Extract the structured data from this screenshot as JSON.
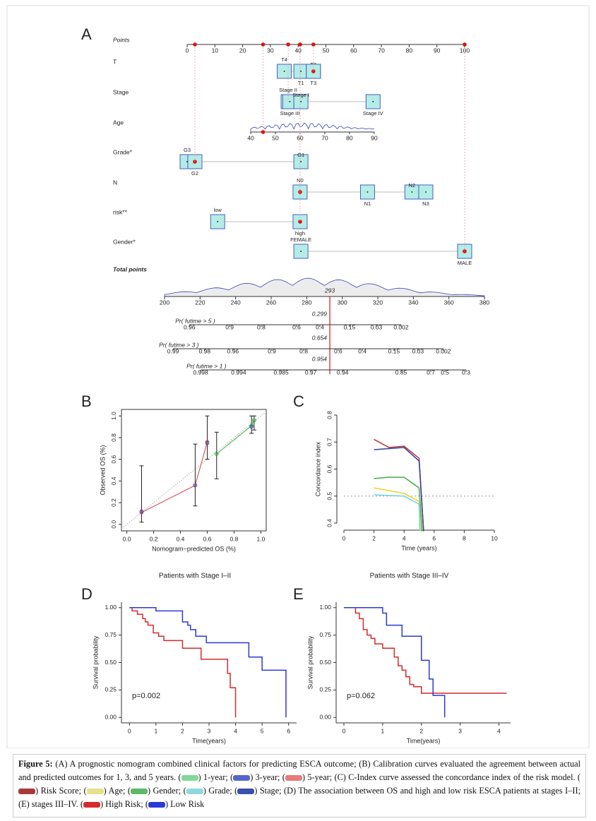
{
  "panel_labels": [
    "A",
    "B",
    "C",
    "D",
    "E"
  ],
  "nomogram": {
    "points_label": "Points",
    "points_lim": [
      0,
      100
    ],
    "points_ticks": [
      0,
      10,
      20,
      30,
      40,
      50,
      60,
      70,
      80,
      90,
      100
    ],
    "rows": [
      {
        "label": "T",
        "levels": [
          {
            "name": "T4",
            "points": 35
          },
          {
            "name": "T1",
            "points": 41
          },
          {
            "name": "T2",
            "points": 45.5
          },
          {
            "name": "T3",
            "points": 45.5,
            "selected": true
          }
        ]
      },
      {
        "label": "Stage",
        "levels": [
          {
            "name": "Stage II",
            "points": 36.4,
            "selected": true
          },
          {
            "name": "Stage III",
            "points": 37
          },
          {
            "name": "Stage I",
            "points": 41
          },
          {
            "name": "Stage IV",
            "points": 67
          }
        ]
      },
      {
        "label": "Age",
        "scale": {
          "lim": [
            40,
            90
          ],
          "points": [
            22.9,
            67.4
          ],
          "ticks": [
            40,
            50,
            60,
            70,
            80,
            90
          ],
          "selected": 45
        }
      },
      {
        "label": "Grade*",
        "levels": [
          {
            "name": "G3",
            "points": 0
          },
          {
            "name": "G2",
            "points": 2.8,
            "selected": true
          },
          {
            "name": "G1",
            "points": 41
          }
        ]
      },
      {
        "label": "N",
        "levels": [
          {
            "name": "N0",
            "points": 40.7,
            "selected": true
          },
          {
            "name": "N1",
            "points": 65
          },
          {
            "name": "N2",
            "points": 81
          },
          {
            "name": "N3",
            "points": 86
          }
        ]
      },
      {
        "label": "risk**",
        "levels": [
          {
            "name": "low",
            "points": 11
          },
          {
            "name": "high",
            "points": 40.7,
            "selected": true
          }
        ]
      },
      {
        "label": "Gender*",
        "levels": [
          {
            "name": "FEMALE",
            "points": 41
          },
          {
            "name": "MALE",
            "points": 100,
            "selected": true
          }
        ]
      }
    ],
    "total_label": "Total points",
    "total_lim": [
      200,
      380
    ],
    "total_ticks": [
      200,
      220,
      240,
      260,
      280,
      300,
      320,
      340,
      360,
      380
    ],
    "total_selected": 293,
    "prob_scales": [
      {
        "label": "Pr( futime > 5 )",
        "result": 0.299,
        "ticks": [
          {
            "prob": 0.96,
            "total_points": 214
          },
          {
            "prob": 0.9,
            "total_points": 236.6
          },
          {
            "prob": 0.8,
            "total_points": 254.4
          },
          {
            "prob": 0.6,
            "total_points": 274.3
          },
          {
            "prob": 0.4,
            "total_points": 287.4
          },
          {
            "prob": 0.15,
            "total_points": 304.1
          },
          {
            "prob": 0.03,
            "total_points": 319.2
          },
          {
            "prob": 0.002,
            "total_points": 333.1
          }
        ]
      },
      {
        "label": "Pr( futime > 3 )",
        "result": 0.654,
        "ticks": [
          {
            "prob": 0.99,
            "total_points": 204.8
          },
          {
            "prob": 0.98,
            "total_points": 222.6
          },
          {
            "prob": 0.96,
            "total_points": 238.5
          },
          {
            "prob": 0.9,
            "total_points": 260.4
          },
          {
            "prob": 0.8,
            "total_points": 278.3
          },
          {
            "prob": 0.6,
            "total_points": 297.7
          },
          {
            "prob": 0.4,
            "total_points": 311.3
          },
          {
            "prob": 0.15,
            "total_points": 329.1
          },
          {
            "prob": 0.03,
            "total_points": 342.6
          },
          {
            "prob": 0.002,
            "total_points": 356.9
          }
        ]
      },
      {
        "label": "Pr( futime > 1 )",
        "result": 0.954,
        "ticks": [
          {
            "prob": 0.998,
            "total_points": 220.3
          },
          {
            "prob": 0.994,
            "total_points": 241.7
          },
          {
            "prob": 0.985,
            "total_points": 265.6
          },
          {
            "prob": 0.97,
            "total_points": 282.3
          },
          {
            "prob": 0.94,
            "total_points": 300.2
          },
          {
            "prob": 0.85,
            "total_points": 333.1
          },
          {
            "prob": 0.7,
            "total_points": 349.8
          },
          {
            "prob": 0.5,
            "total_points": 357.8
          },
          {
            "prob": 0.3,
            "total_points": 369.7
          }
        ]
      }
    ]
  },
  "chart_data": [
    {
      "type": "calibration",
      "xlabel": "Nomogram−predicted OS (%)",
      "ylabel": "Observed OS (%)",
      "xlim": [
        -0.04,
        1.04
      ],
      "ylim": [
        -0.06,
        1.06
      ],
      "xticks": [
        {
          "value": 0,
          "label": "0.0"
        },
        0.2,
        0.4,
        0.6,
        0.8,
        {
          "value": 1,
          "label": "1.0"
        }
      ],
      "yticks": [
        {
          "value": 0,
          "label": "0.0"
        },
        0.2,
        0.4,
        0.6,
        0.8,
        {
          "value": 1,
          "label": "1.0"
        }
      ],
      "series": [
        {
          "color": "#d9403a",
          "line": true,
          "x": [
            0.11,
            0.51,
            0.6
          ],
          "values": [
            0.11,
            0.36,
            0.76
          ],
          "lower": [
            0.02,
            0.17,
            0.6
          ],
          "upper": [
            0.54,
            0.74,
            1.0
          ]
        },
        {
          "color": "#3cb043",
          "line": true,
          "x": [
            0.67,
            0.93,
            0.95
          ],
          "values": [
            0.65,
            0.91,
            0.96
          ],
          "lower": [
            0.42,
            0.84,
            0.87
          ],
          "upper": [
            0.85,
            1.0,
            1.0
          ]
        },
        {
          "color": "#4455cc",
          "line": false,
          "x": [
            0.11,
            0.51,
            0.6,
            0.93
          ],
          "values": [
            0.12,
            0.36,
            0.75,
            0.9
          ]
        }
      ]
    },
    {
      "type": "line",
      "xlabel": "Time (years)",
      "ylabel": "Concordance index",
      "xlim": [
        0,
        10
      ],
      "ylim": [
        0.4,
        0.8
      ],
      "xticks": [
        0,
        2,
        4,
        6,
        8,
        10
      ],
      "yticks": [
        0.4,
        0.5,
        0.6,
        0.7,
        0.8
      ],
      "reference_line": 0.5,
      "series": [
        {
          "color": "#c03030",
          "x": [
            2,
            3,
            4,
            5,
            5.3
          ],
          "values": [
            0.71,
            0.68,
            0.685,
            0.64,
            0.37
          ]
        },
        {
          "color": "#3040a0",
          "x": [
            2,
            4,
            5,
            5.3
          ],
          "values": [
            0.672,
            0.68,
            0.63,
            0.37
          ]
        },
        {
          "color": "#3cb043",
          "x": [
            2,
            3,
            4,
            5,
            5.2
          ],
          "values": [
            0.565,
            0.57,
            0.57,
            0.53,
            0.37
          ]
        },
        {
          "color": "#e6d22a",
          "x": [
            2,
            4,
            5,
            5.1
          ],
          "values": [
            0.53,
            0.51,
            0.48,
            0.37
          ]
        },
        {
          "color": "#6fd3e0",
          "x": [
            2,
            4,
            5,
            5.05
          ],
          "values": [
            0.505,
            0.5,
            0.47,
            0.37
          ]
        }
      ]
    },
    {
      "type": "survival",
      "title": "Patients with Stage I–II",
      "annotation": "p=0.002",
      "xlabel": "Time(years)",
      "ylabel": "Survival probability",
      "xlim": [
        -0.3,
        6.3
      ],
      "ylim": [
        -0.05,
        1.05
      ],
      "xticks": [
        0,
        1,
        2,
        3,
        4,
        5,
        6
      ],
      "yticks": [
        {
          "value": 0,
          "label": "0.00"
        },
        {
          "value": 0.25,
          "label": "0.25"
        },
        {
          "value": 0.5,
          "label": "0.50"
        },
        {
          "value": 0.75,
          "label": "0.75"
        },
        {
          "value": 1,
          "label": "1.00"
        }
      ],
      "series": [
        {
          "color": "#d62a2a",
          "x": [
            0,
            0.1,
            0.3,
            0.5,
            0.6,
            0.7,
            0.9,
            1.1,
            1.3,
            2.0,
            2.7,
            3.7,
            3.8,
            4.0
          ],
          "values": [
            1,
            0.97,
            0.94,
            0.9,
            0.87,
            0.84,
            0.77,
            0.74,
            0.7,
            0.63,
            0.53,
            0.4,
            0.27,
            0
          ]
        },
        {
          "color": "#2a3ad6",
          "x": [
            0,
            1.0,
            2.0,
            2.2,
            2.3,
            2.5,
            2.9,
            4.5,
            5.0,
            5.9
          ],
          "values": [
            1,
            0.97,
            0.87,
            0.84,
            0.8,
            0.74,
            0.68,
            0.55,
            0.43,
            0
          ]
        }
      ]
    },
    {
      "type": "survival",
      "title": "Patients with Stage III–IV",
      "annotation": "p=0.062",
      "xlabel": "Time(years)",
      "ylabel": "Survival probability",
      "xlim": [
        -0.2,
        4.3
      ],
      "ylim": [
        -0.05,
        1.05
      ],
      "xticks": [
        0,
        1,
        2,
        3,
        4
      ],
      "yticks": [
        {
          "value": 0,
          "label": "0.00"
        },
        {
          "value": 0.25,
          "label": "0.25"
        },
        {
          "value": 0.5,
          "label": "0.50"
        },
        {
          "value": 0.75,
          "label": "0.75"
        },
        {
          "value": 1,
          "label": "1.00"
        }
      ],
      "series": [
        {
          "color": "#d62a2a",
          "x": [
            0,
            0.3,
            0.4,
            0.5,
            0.6,
            0.7,
            0.8,
            1.0,
            1.3,
            1.4,
            1.5,
            1.6,
            1.7,
            1.8,
            2.0,
            4.2
          ],
          "values": [
            1,
            0.95,
            0.9,
            0.8,
            0.75,
            0.72,
            0.67,
            0.63,
            0.55,
            0.47,
            0.43,
            0.37,
            0.3,
            0.28,
            0.22,
            0.22
          ]
        },
        {
          "color": "#2a3ad6",
          "x": [
            0,
            1.0,
            1.1,
            1.5,
            2.0,
            2.2,
            2.3,
            2.6
          ],
          "values": [
            1,
            0.95,
            0.84,
            0.74,
            0.52,
            0.35,
            0.2,
            0
          ]
        }
      ]
    }
  ],
  "caption": {
    "label": "Figure 5:",
    "segments": [
      " (A) A prognostic nomogram combined clinical factors for predicting ESCA outcome; (B) Calibration curves evaluated the agreement between actual and predicted outcomes for 1, 3, and 5 years. (",
      {
        "swatch": "#7fd99a"
      },
      ") 1-year; (",
      {
        "swatch": "#5566cc"
      },
      ") 3-year; (",
      {
        "swatch": "#e87a7a"
      },
      ") 5-year; (C) C-Index curve assessed the concordance index of the risk model. (",
      {
        "swatch": "#a83a3a"
      },
      ") Risk Score; (",
      {
        "swatch": "#e8e08a"
      },
      ") Age; (",
      {
        "swatch": "#5fb86a"
      },
      ") Gender; (",
      {
        "swatch": "#8fd8e0"
      },
      ") Grade; (",
      {
        "swatch": "#3b4fae"
      },
      ") Stage; (D) The association between OS and high and low risk ESCA patients at stages I–II; (E) stages III–IV. (",
      {
        "swatch": "#d62a2a"
      },
      ") High Risk; (",
      {
        "swatch": "#2a3ad6"
      },
      ") Low Risk"
    ]
  }
}
